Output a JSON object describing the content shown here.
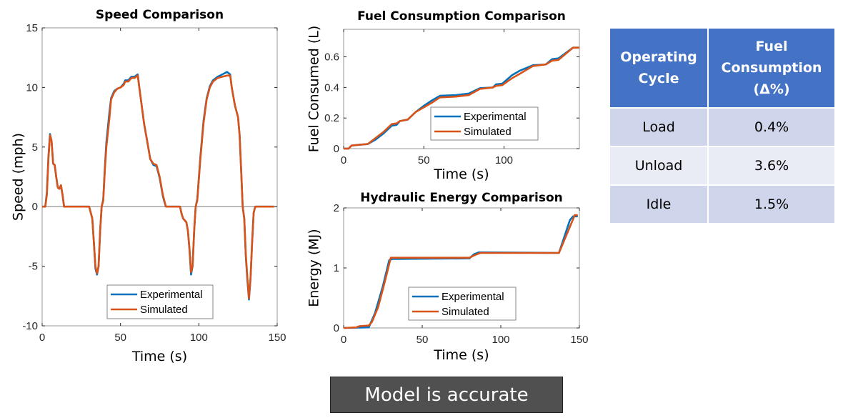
{
  "chart_data": [
    {
      "type": "line",
      "title": "Speed Comparison",
      "xlabel": "Time (s)",
      "ylabel": "Speed (mph)",
      "xlim": [
        0,
        150
      ],
      "ylim": [
        -10,
        15
      ],
      "xticks": [
        0,
        50,
        100,
        150
      ],
      "yticks": [
        -10,
        -5,
        0,
        5,
        10,
        15
      ],
      "zero_line": true,
      "grid": false,
      "legend_placement": "bottom-center",
      "series": [
        {
          "name": "Experimental",
          "color": "#0072bd",
          "x": [
            0,
            2,
            3,
            4,
            5,
            6,
            7,
            8,
            9,
            10,
            11,
            12,
            13,
            14,
            30,
            32,
            33,
            34,
            35,
            36,
            37,
            38,
            39,
            40,
            41,
            43,
            44,
            46,
            48,
            50,
            52,
            53,
            55,
            57,
            59,
            61,
            62,
            63,
            65,
            67,
            69,
            71,
            73,
            75,
            77,
            78,
            79,
            88,
            89,
            90,
            92,
            93,
            94,
            95,
            96,
            97,
            98,
            99,
            101,
            103,
            105,
            107,
            109,
            112,
            115,
            118,
            120,
            121,
            123,
            125,
            126,
            127,
            128,
            129,
            130,
            131,
            132,
            133,
            134,
            135,
            136,
            148
          ],
          "y": [
            0,
            0,
            1.2,
            4.2,
            6.1,
            5.5,
            3.6,
            3.5,
            2.5,
            1.6,
            1.5,
            1.8,
            1,
            0,
            0,
            -1,
            -3,
            -5.2,
            -5.7,
            -5,
            -2,
            0,
            0.6,
            3.2,
            5.4,
            8,
            9.1,
            9.7,
            9.9,
            10,
            10.3,
            10.6,
            10.6,
            10.9,
            10.9,
            11.1,
            10,
            9,
            7,
            5.5,
            4,
            3.5,
            3.4,
            2.4,
            0.9,
            0.4,
            0,
            0,
            -0.6,
            -1,
            -1.3,
            -2,
            -3.6,
            -5.7,
            -5,
            -2,
            0,
            0.6,
            4.2,
            7.2,
            9.1,
            10.1,
            10.6,
            10.9,
            11.1,
            11.3,
            11.1,
            10,
            8.5,
            7.5,
            6,
            3,
            0,
            -1,
            -4.2,
            -6.2,
            -7.8,
            -6,
            -3,
            -0.5,
            0,
            0
          ]
        },
        {
          "name": "Simulated",
          "color": "#d95319",
          "x": [
            0,
            2,
            3,
            4,
            5,
            6,
            7,
            8,
            9,
            10,
            11,
            12,
            13,
            14,
            30,
            32,
            33,
            34,
            35,
            36,
            37,
            38,
            39,
            40,
            41,
            43,
            44,
            46,
            48,
            50,
            52,
            53,
            55,
            57,
            59,
            61,
            62,
            63,
            65,
            67,
            69,
            71,
            73,
            75,
            77,
            78,
            79,
            88,
            89,
            90,
            92,
            93,
            94,
            95,
            96,
            97,
            98,
            99,
            101,
            103,
            105,
            107,
            109,
            112,
            115,
            118,
            120,
            121,
            123,
            125,
            126,
            127,
            128,
            129,
            130,
            131,
            132,
            133,
            134,
            135,
            136,
            148
          ],
          "y": [
            0,
            0,
            1,
            4,
            6,
            5.5,
            3.6,
            3.5,
            2.5,
            1.6,
            1.5,
            1.8,
            1,
            0,
            0,
            -1,
            -3,
            -5,
            -5.6,
            -5,
            -2,
            0,
            0.5,
            3,
            5,
            7.5,
            9,
            9.6,
            9.9,
            10,
            10.2,
            10.5,
            10.5,
            10.8,
            10.8,
            11,
            10,
            9,
            7,
            5.5,
            4,
            3.6,
            3.5,
            2.5,
            1,
            0.5,
            0,
            0,
            -0.6,
            -1,
            -1.3,
            -2,
            -3.5,
            -5.5,
            -5,
            -2,
            0,
            0.5,
            4,
            7,
            9,
            10,
            10.5,
            10.8,
            10.9,
            11,
            11,
            10,
            8.5,
            7.5,
            6,
            3,
            0,
            -1,
            -4,
            -6,
            -7.7,
            -6,
            -3,
            -0.5,
            0,
            0
          ]
        }
      ]
    },
    {
      "type": "line",
      "title": "Fuel Consumption Comparison",
      "xlabel": "Time (s)",
      "ylabel": "Fuel Consumed (L)",
      "xlim": [
        0,
        147
      ],
      "ylim": [
        0,
        0.78
      ],
      "xticks": [
        0,
        50,
        100
      ],
      "yticks": [
        0,
        0.2,
        0.4,
        0.6
      ],
      "grid": false,
      "legend_placement": "bottom-right",
      "series": [
        {
          "name": "Experimental",
          "color": "#0072bd",
          "x": [
            0,
            3,
            5,
            10,
            15,
            20,
            25,
            30,
            33,
            35,
            40,
            45,
            50,
            55,
            60,
            70,
            78,
            85,
            93,
            95,
            99,
            105,
            110,
            118,
            126,
            130,
            134,
            143,
            147
          ],
          "y": [
            0,
            0,
            0.02,
            0.025,
            0.03,
            0.06,
            0.1,
            0.15,
            0.155,
            0.18,
            0.19,
            0.24,
            0.28,
            0.315,
            0.345,
            0.35,
            0.36,
            0.395,
            0.4,
            0.42,
            0.425,
            0.48,
            0.51,
            0.545,
            0.55,
            0.585,
            0.59,
            0.66,
            0.66
          ]
        },
        {
          "name": "Simulated",
          "color": "#d95319",
          "x": [
            0,
            3,
            5,
            10,
            15,
            20,
            25,
            30,
            33,
            35,
            40,
            45,
            50,
            55,
            60,
            70,
            78,
            85,
            93,
            95,
            99,
            105,
            110,
            118,
            126,
            130,
            134,
            143,
            147
          ],
          "y": [
            0,
            0,
            0.02,
            0.025,
            0.03,
            0.07,
            0.11,
            0.16,
            0.165,
            0.18,
            0.19,
            0.24,
            0.27,
            0.3,
            0.335,
            0.34,
            0.35,
            0.39,
            0.4,
            0.41,
            0.415,
            0.46,
            0.49,
            0.54,
            0.55,
            0.575,
            0.58,
            0.66,
            0.66
          ]
        }
      ]
    },
    {
      "type": "line",
      "title": "Hydraulic Energy Comparison",
      "xlabel": "Time (s)",
      "ylabel": "Energy (MJ)",
      "xlim": [
        0,
        150
      ],
      "ylim": [
        0,
        2
      ],
      "xticks": [
        0,
        50,
        100,
        150
      ],
      "yticks": [
        0,
        1,
        2
      ],
      "grid": false,
      "legend_placement": "bottom-center",
      "series": [
        {
          "name": "Experimental",
          "color": "#0072bd",
          "x": [
            0,
            16,
            20,
            25,
            29,
            31,
            80,
            83,
            86,
            137,
            144,
            146,
            149
          ],
          "y": [
            0,
            0.01,
            0.25,
            0.7,
            1.13,
            1.15,
            1.16,
            1.23,
            1.26,
            1.25,
            1.8,
            1.86,
            1.86
          ]
        },
        {
          "name": "Simulated",
          "color": "#d95319",
          "x": [
            0,
            8,
            10,
            16,
            18,
            22,
            26,
            30,
            80,
            84,
            87,
            137,
            145,
            147,
            149
          ],
          "y": [
            0,
            0.01,
            0.03,
            0.04,
            0.1,
            0.35,
            0.75,
            1.17,
            1.17,
            1.22,
            1.25,
            1.25,
            1.75,
            1.88,
            1.88
          ]
        }
      ]
    }
  ],
  "table": {
    "header_color": "#4472c4",
    "headers": [
      "Operating Cycle",
      "Fuel Consumption (Δ%)"
    ],
    "rows": [
      {
        "cycle": "Load",
        "delta": "0.4%"
      },
      {
        "cycle": "Unload",
        "delta": "3.6%"
      },
      {
        "cycle": "Idle",
        "delta": "1.5%"
      }
    ]
  },
  "banner": {
    "text": "Model is accurate"
  }
}
